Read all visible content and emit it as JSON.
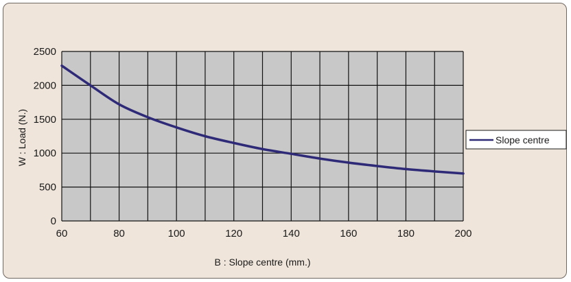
{
  "chart_data": {
    "type": "line",
    "title": "",
    "xlabel": "B : Slope centre (mm.)",
    "ylabel": "W : Load (N.)",
    "xlim": [
      60,
      200
    ],
    "ylim": [
      0,
      2500
    ],
    "xticks": [
      60,
      80,
      100,
      120,
      140,
      160,
      180,
      200
    ],
    "yticks": [
      0,
      500,
      1000,
      1500,
      2000,
      2500
    ],
    "grid": true,
    "legend": "right",
    "series": [
      {
        "name": "Slope centre",
        "color": "#2e2a78",
        "x": [
          60,
          70,
          80,
          90,
          100,
          110,
          120,
          130,
          140,
          150,
          160,
          170,
          180,
          190,
          200
        ],
        "y": [
          2290,
          2000,
          1720,
          1530,
          1380,
          1250,
          1150,
          1060,
          990,
          920,
          860,
          810,
          765,
          730,
          700
        ]
      }
    ]
  },
  "colors": {
    "frame_bg": "#efe5da",
    "plot_bg": "#c8c8c8",
    "grid": "#111111"
  }
}
